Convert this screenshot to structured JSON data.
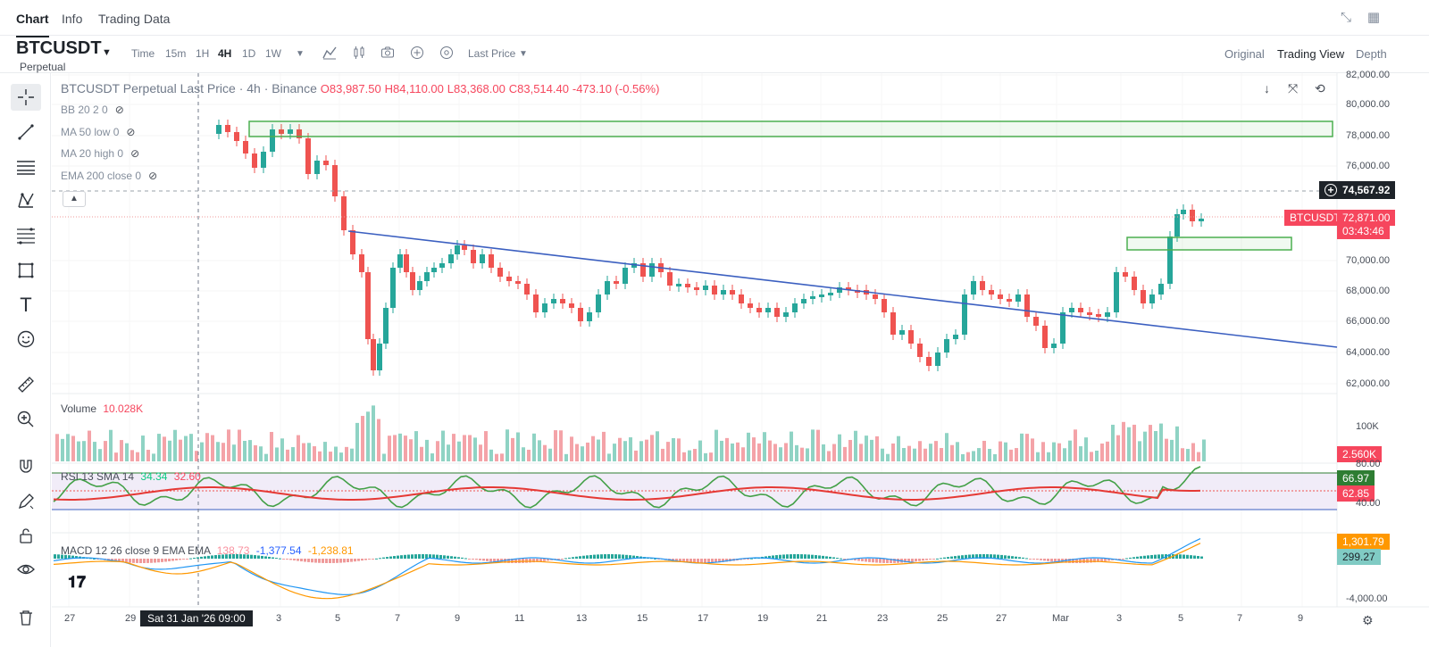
{
  "tabs": [
    "Chart",
    "Info",
    "Trading Data"
  ],
  "symbol": {
    "name": "BTCUSDT",
    "sub": "Perpetual"
  },
  "timeframes": [
    "Time",
    "15m",
    "1H",
    "4H",
    "1D",
    "1W"
  ],
  "active_timeframe": "4H",
  "price_source": "Last Price",
  "views": [
    "Original",
    "Trading View",
    "Depth"
  ],
  "active_view": "Trading View",
  "legend": {
    "title": "BTCUSDT Perpetual Last Price · 4h · Binance",
    "o": "O83,987.50",
    "h": "H84,110.00",
    "l": "L83,368.00",
    "c": "C83,514.40",
    "chg": "-473.10 (-0.56%)"
  },
  "indicators": [
    "BB 20 2 0",
    "MA 50 low 0",
    "MA 20 high 0",
    "EMA 200 close 0"
  ],
  "volume": {
    "label": "Volume",
    "value": "10.028K",
    "axis": "100K",
    "tag": "2.560K"
  },
  "rsi": {
    "label": "RSI 13 SMA 14",
    "v1": "34.34",
    "v2": "32.60",
    "top": "80.00",
    "bottom": "40.00",
    "tag1": "66.97",
    "tag2": "62.85"
  },
  "macd": {
    "label": "MACD 12 26 close 9 EMA EMA",
    "v1": "138.73",
    "v2": "-1,377.54",
    "v3": "-1,238.81",
    "tag1": "1,301.79",
    "tag2": "299.27",
    "axis": "-4,000.00"
  },
  "price_axis": [
    "82,000.00",
    "80,000.00",
    "78,000.00",
    "76,000.00",
    "70,000.00",
    "68,000.00",
    "66,000.00",
    "64,000.00",
    "62,000.00"
  ],
  "crosshair_price": "74,567.92",
  "last_tag": {
    "symbol": "BTCUSDT",
    "price": "72,871.00",
    "countdown": "03:43:46"
  },
  "x_axis": [
    "27",
    "29",
    "3",
    "5",
    "7",
    "9",
    "11",
    "13",
    "15",
    "17",
    "19",
    "21",
    "23",
    "25",
    "27",
    "Mar",
    "3",
    "5",
    "7",
    "9"
  ],
  "crosshair_time": "Sat 31 Jan '26   09:00",
  "colors": {
    "up": "#26a69a",
    "down": "#ef5350",
    "trend": "#3b5fc0",
    "box": "#4caf50"
  }
}
